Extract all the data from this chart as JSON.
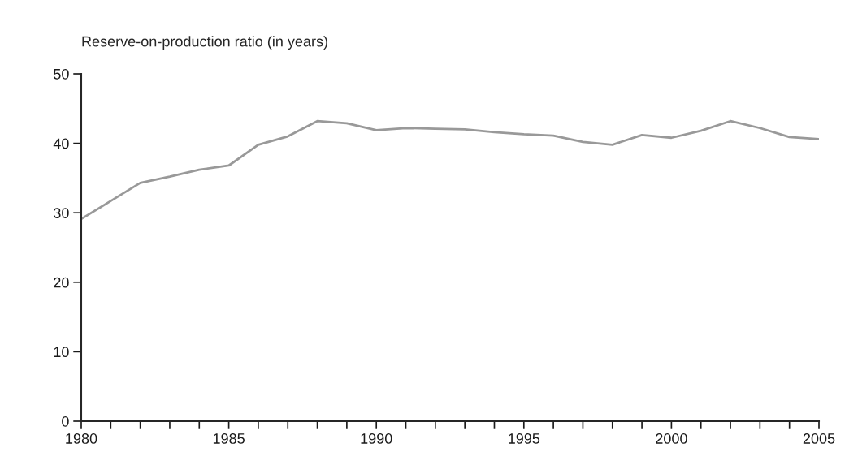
{
  "chart_data": {
    "type": "line",
    "ylabel": "Reserve-on-production ratio (in years)",
    "x": [
      1980,
      1981,
      1982,
      1983,
      1984,
      1985,
      1986,
      1987,
      1988,
      1989,
      1990,
      1991,
      1992,
      1993,
      1994,
      1995,
      1996,
      1997,
      1998,
      1999,
      2000,
      2001,
      2002,
      2003,
      2004,
      2005
    ],
    "series": [
      {
        "color": "#999999",
        "values": [
          29.1,
          31.7,
          34.3,
          35.2,
          36.2,
          36.8,
          39.8,
          41.0,
          43.2,
          42.9,
          41.9,
          42.2,
          42.1,
          42.0,
          41.6,
          41.3,
          41.1,
          40.2,
          39.8,
          41.2,
          40.8,
          41.8,
          43.2,
          42.2,
          40.9,
          40.6
        ]
      }
    ],
    "xlim": [
      1980,
      2005
    ],
    "ylim": [
      0,
      50
    ],
    "xticks": [
      1980,
      {
        "value": 1981,
        "label": null
      },
      {
        "value": 1982,
        "label": null
      },
      {
        "value": 1983,
        "label": null
      },
      {
        "value": 1984,
        "label": null
      },
      1985,
      {
        "value": 1986,
        "label": null
      },
      {
        "value": 1987,
        "label": null
      },
      {
        "value": 1988,
        "label": null
      },
      {
        "value": 1989,
        "label": null
      },
      1990,
      {
        "value": 1991,
        "label": null
      },
      {
        "value": 1992,
        "label": null
      },
      {
        "value": 1993,
        "label": null
      },
      {
        "value": 1994,
        "label": null
      },
      1995,
      {
        "value": 1996,
        "label": null
      },
      {
        "value": 1997,
        "label": null
      },
      {
        "value": 1998,
        "label": null
      },
      {
        "value": 1999,
        "label": null
      },
      2000,
      {
        "value": 2001,
        "label": null
      },
      {
        "value": 2002,
        "label": null
      },
      {
        "value": 2003,
        "label": null
      },
      {
        "value": 2004,
        "label": null
      },
      2005
    ],
    "yticks": [
      0,
      10,
      20,
      30,
      40,
      50
    ],
    "grid": false,
    "legend": false
  }
}
